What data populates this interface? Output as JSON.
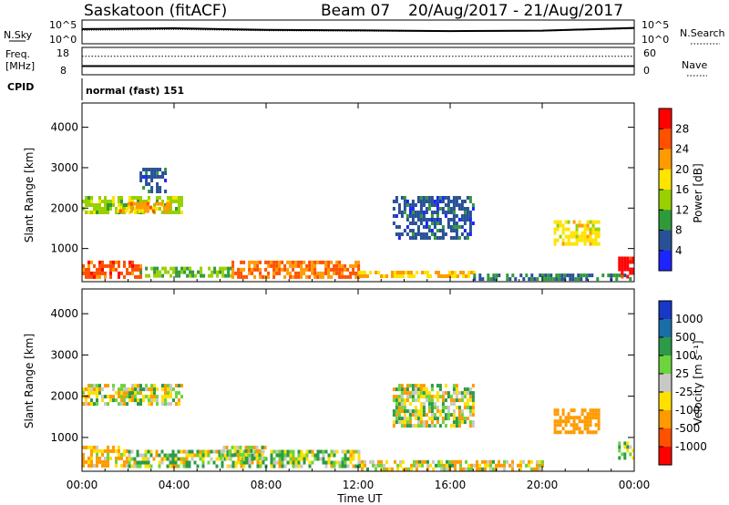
{
  "header": {
    "station": "Saskatoon (fitACF)",
    "beam": "Beam 07",
    "dates": "20/Aug/2017 - 21/Aug/2017"
  },
  "top_panel": {
    "left_label": "N.Sky",
    "right_label": "N.Search",
    "y_top": "10^5",
    "y_bottom": "10^0"
  },
  "freq_panel": {
    "label_line1": "Freq.",
    "label_line2": "[MHz]",
    "left_top": "18",
    "left_bottom": "8",
    "right_top": "60",
    "right_bottom": "0",
    "right_label": "Nave"
  },
  "cpid": {
    "label": "CPID",
    "mode": "normal (fast) 151"
  },
  "power_colorbar": {
    "label": "Power [dB]",
    "ticks": [
      "28",
      "24",
      "20",
      "16",
      "12",
      "8",
      "4"
    ],
    "colors": [
      "#ff0000",
      "#ff5000",
      "#ff9a00",
      "#ffe400",
      "#98d000",
      "#2f9a3a",
      "#285096",
      "#1c24ff"
    ]
  },
  "velocity_colorbar": {
    "label": "Velocity [m s⁻¹]",
    "ticks": [
      "1000",
      "500",
      "100",
      "25",
      "-25",
      "-100",
      "-500",
      "-1000"
    ],
    "colors": [
      "#1838c8",
      "#1a6ea8",
      "#2c9a48",
      "#6cd43c",
      "#c8c8c4",
      "#ffe000",
      "#ff9a00",
      "#ff5000",
      "#ff0000"
    ]
  },
  "chart_data": [
    {
      "type": "line",
      "title": "N.Sky / N.Search",
      "x": [
        "00:00",
        "04:00",
        "08:00",
        "12:00",
        "16:00",
        "20:00",
        "00:00"
      ],
      "series": [
        {
          "name": "N.Sky",
          "values": [
            3.2,
            3.4,
            3.0,
            2.9,
            2.7,
            2.8,
            3.5
          ]
        },
        {
          "name": "N.Search",
          "values": [
            2.9,
            3.1,
            2.8,
            2.7,
            2.6,
            2.7,
            3.3
          ]
        }
      ]
    },
    {
      "type": "line",
      "title": "Freq. / Nave",
      "x": [
        "00:00",
        "04:00",
        "08:00",
        "12:00",
        "16:00",
        "20:00",
        "00:00"
      ],
      "series": [
        {
          "name": "Freq. [MHz]",
          "values": [
            10.9,
            10.9,
            10.9,
            10.9,
            10.9,
            10.9,
            10.9
          ]
        },
        {
          "name": "Nave",
          "values": [
            42,
            42,
            42,
            42,
            42,
            42,
            42
          ]
        }
      ]
    },
    {
      "type": "heatmap",
      "variable": "Power [dB]",
      "ylabel": "Slant Range [km]",
      "xlabel": "Time UT",
      "x_ticks": [
        "00:00",
        "04:00",
        "08:00",
        "12:00",
        "16:00",
        "20:00",
        "00:00"
      ],
      "y_ticks": [
        "1000",
        "2000",
        "3000",
        "4000"
      ],
      "ylim": [
        180,
        4600
      ],
      "clim": [
        0,
        32
      ],
      "regions": [
        {
          "t0": 0.0,
          "t1": 4.3,
          "r0": 1850,
          "r1": 2300,
          "v": 14
        },
        {
          "t0": 1.5,
          "t1": 3.8,
          "r0": 1950,
          "r1": 2150,
          "v": 22
        },
        {
          "t0": 2.5,
          "t1": 3.6,
          "r0": 2400,
          "r1": 3000,
          "v": 6
        },
        {
          "t0": 0.0,
          "t1": 2.5,
          "r0": 300,
          "r1": 700,
          "v": 26
        },
        {
          "t0": 2.5,
          "t1": 6.5,
          "r0": 300,
          "r1": 550,
          "v": 12
        },
        {
          "t0": 6.5,
          "t1": 12.0,
          "r0": 300,
          "r1": 700,
          "v": 24
        },
        {
          "t0": 12.0,
          "t1": 17.0,
          "r0": 300,
          "r1": 450,
          "v": 20
        },
        {
          "t0": 13.5,
          "t1": 17.0,
          "r0": 1300,
          "r1": 2300,
          "v": 6
        },
        {
          "t0": 17.0,
          "t1": 24.0,
          "r0": 280,
          "r1": 380,
          "v": 8
        },
        {
          "t0": 20.5,
          "t1": 22.5,
          "r0": 1100,
          "r1": 1700,
          "v": 18
        },
        {
          "t0": 23.3,
          "t1": 24.0,
          "r0": 280,
          "r1": 800,
          "v": 30
        }
      ]
    },
    {
      "type": "heatmap",
      "variable": "Velocity [m s⁻¹]",
      "ylabel": "Slant Range [km]",
      "xlabel": "Time UT",
      "x_ticks": [
        "00:00",
        "04:00",
        "08:00",
        "12:00",
        "16:00",
        "20:00",
        "00:00"
      ],
      "y_ticks": [
        "1000",
        "2000",
        "3000",
        "4000"
      ],
      "ylim": [
        180,
        4600
      ],
      "clim": [
        -1000,
        1000
      ],
      "regions": [
        {
          "t0": 0.0,
          "t1": 4.3,
          "r0": 1850,
          "r1": 2300,
          "v": 0
        },
        {
          "t0": 0.0,
          "t1": 2.0,
          "r0": 300,
          "r1": 800,
          "v": -120
        },
        {
          "t0": 2.0,
          "t1": 12.0,
          "r0": 300,
          "r1": 700,
          "v": 50
        },
        {
          "t0": 6.0,
          "t1": 8.0,
          "r0": 500,
          "r1": 800,
          "v": 0
        },
        {
          "t0": 12.0,
          "t1": 20.0,
          "r0": 250,
          "r1": 450,
          "v": -40
        },
        {
          "t0": 13.5,
          "t1": 17.0,
          "r0": 1300,
          "r1": 2300,
          "v": 0
        },
        {
          "t0": 20.5,
          "t1": 22.5,
          "r0": 1100,
          "r1": 1700,
          "v": -300
        },
        {
          "t0": 23.3,
          "t1": 24.0,
          "r0": 500,
          "r1": 900,
          "v": 80
        }
      ]
    }
  ],
  "x_axis": {
    "ticks": [
      "00:00",
      "04:00",
      "08:00",
      "12:00",
      "16:00",
      "20:00",
      "00:00"
    ],
    "label": "Time UT"
  },
  "y_axis": {
    "label": "Slant Range [km]",
    "ticks": [
      "1000",
      "2000",
      "3000",
      "4000"
    ]
  }
}
